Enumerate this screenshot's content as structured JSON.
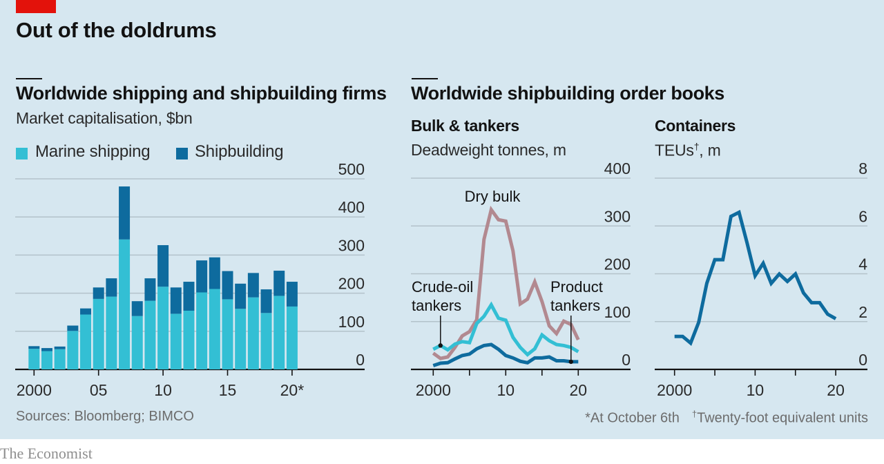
{
  "header": {
    "title": "Out of the doldrums",
    "accent_color": "#e3120b"
  },
  "footer": {
    "source": "Sources: Bloomberg; BIMCO",
    "footnote_star": "*At October 6th",
    "footnote_dagger_mark": "†",
    "footnote_dagger": "Twenty-foot equivalent units",
    "brand": "The Economist"
  },
  "panels": {
    "left": {
      "title": "Worldwide shipping and shipbuilding firms",
      "subtitle": "Market capitalisation, $bn"
    },
    "right": {
      "title": "Worldwide shipbuilding order books",
      "bulk": {
        "title": "Bulk & tankers",
        "subtitle": "Deadweight tonnes, m"
      },
      "containers": {
        "title": "Containers",
        "subtitle_main": "TEUs",
        "subtitle_mark": "†",
        "subtitle_tail": ", m"
      }
    }
  },
  "colors": {
    "background": "#d6e7f0",
    "gridline": "#b3c2ca",
    "marine_shipping": "#33bfd4",
    "shipbuilding": "#0e6b9e",
    "dry_bulk": "#b28990",
    "crude_oil": "#33bfd4",
    "product": "#0e6b9e",
    "containers": "#0e6b9e"
  },
  "chart_data": [
    {
      "id": "market-cap",
      "type": "bar",
      "stacked": true,
      "title": "Worldwide shipping and shipbuilding firms",
      "subtitle": "Market capitalisation, $bn",
      "categories": [
        2000,
        2001,
        2002,
        2003,
        2004,
        2005,
        2006,
        2007,
        2008,
        2009,
        2010,
        2011,
        2012,
        2013,
        2014,
        2015,
        2016,
        2017,
        2018,
        2019,
        2020
      ],
      "series": [
        {
          "name": "Marine shipping",
          "values": [
            54,
            48,
            53,
            101,
            144,
            185,
            191,
            341,
            140,
            180,
            217,
            146,
            154,
            202,
            211,
            184,
            159,
            189,
            148,
            193,
            165
          ]
        },
        {
          "name": "Shipbuilding",
          "values": [
            7,
            8,
            7,
            14,
            16,
            30,
            48,
            139,
            39,
            59,
            109,
            69,
            76,
            84,
            83,
            74,
            66,
            64,
            62,
            66,
            65
          ]
        }
      ],
      "ylim": [
        0,
        500
      ],
      "yticks": [
        0,
        100,
        200,
        300,
        400,
        500
      ],
      "xticks": [
        2000,
        2005,
        2010,
        2015,
        2020
      ],
      "xtick_labels": [
        "2000",
        "05",
        "10",
        "15",
        "20*"
      ],
      "legend": [
        "Marine shipping",
        "Shipbuilding"
      ],
      "legend_position": "top-left",
      "grid": true,
      "yaxis_side": "right"
    },
    {
      "id": "bulk-tankers",
      "type": "line",
      "title": "Bulk & tankers",
      "subtitle": "Deadweight tonnes, m",
      "x": [
        2000,
        2001,
        2002,
        2003,
        2004,
        2005,
        2006,
        2007,
        2008,
        2009,
        2010,
        2011,
        2012,
        2013,
        2014,
        2015,
        2016,
        2017,
        2018,
        2019,
        2020
      ],
      "series": [
        {
          "name": "Dry bulk",
          "values": [
            34,
            23,
            26,
            46,
            70,
            79,
            104,
            272,
            334,
            313,
            310,
            248,
            137,
            147,
            183,
            142,
            91,
            75,
            101,
            94,
            62
          ]
        },
        {
          "name": "Crude-oil tankers",
          "values": [
            42,
            50,
            41,
            53,
            58,
            56,
            96,
            111,
            135,
            107,
            103,
            67,
            46,
            31,
            43,
            72,
            60,
            52,
            50,
            46,
            37
          ]
        },
        {
          "name": "Product tankers",
          "values": [
            8,
            13,
            14,
            22,
            29,
            32,
            43,
            50,
            52,
            42,
            29,
            24,
            17,
            14,
            24,
            24,
            26,
            18,
            18,
            16,
            16
          ]
        }
      ],
      "annotations": [
        {
          "text": "Dry bulk",
          "series": "Dry bulk"
        },
        {
          "text": "Crude-oil\ntankers",
          "series": "Crude-oil tankers",
          "pointer_year": 2001
        },
        {
          "text": "Product\ntankers",
          "series": "Product tankers",
          "pointer_year": 2019
        }
      ],
      "ylim": [
        0,
        400
      ],
      "yticks": [
        0,
        100,
        200,
        300,
        400
      ],
      "xlim": [
        2000,
        2020
      ],
      "xticks": [
        2000,
        2005,
        2010,
        2015,
        2020
      ],
      "xtick_labels": [
        "2000",
        "",
        "10",
        "",
        "20"
      ],
      "grid": true,
      "yaxis_side": "right"
    },
    {
      "id": "containers",
      "type": "line",
      "title": "Containers",
      "subtitle": "TEUs†, m",
      "x": [
        2000,
        2001,
        2002,
        2003,
        2004,
        2005,
        2006,
        2007,
        2008,
        2009,
        2010,
        2011,
        2012,
        2013,
        2014,
        2015,
        2016,
        2017,
        2018,
        2019,
        2020
      ],
      "series": [
        {
          "name": "Containers",
          "values": [
            1.38,
            1.38,
            1.1,
            1.97,
            3.6,
            4.59,
            4.59,
            6.4,
            6.57,
            5.29,
            3.92,
            4.44,
            3.6,
            3.99,
            3.68,
            3.99,
            3.2,
            2.79,
            2.79,
            2.31,
            2.12
          ]
        }
      ],
      "ylim": [
        0,
        8
      ],
      "yticks": [
        0,
        2,
        4,
        6,
        8
      ],
      "xlim": [
        2000,
        2020
      ],
      "xticks": [
        2000,
        2005,
        2010,
        2015,
        2020
      ],
      "xtick_labels": [
        "2000",
        "",
        "10",
        "",
        "20"
      ],
      "grid": true,
      "yaxis_side": "right"
    }
  ]
}
